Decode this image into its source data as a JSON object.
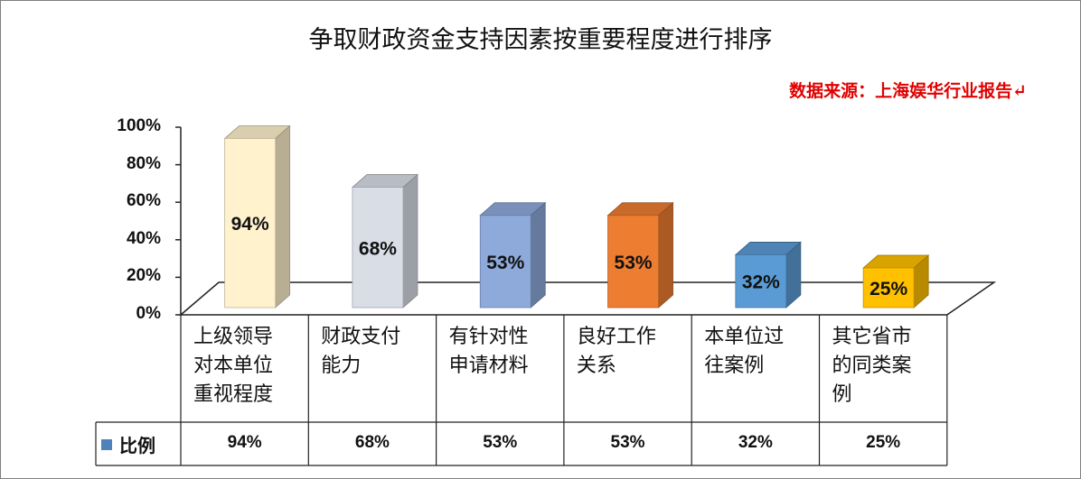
{
  "title": "争取财政资金支持因素按重要程度进行排序",
  "source_note": "数据来源：上海娱华行业报告↵",
  "legend": {
    "label": "比例",
    "color": "#4f81bd"
  },
  "chart_data": {
    "type": "bar",
    "title": "争取财政资金支持因素按重要程度进行排序",
    "categories": [
      "上级领导对本单位重视程度",
      "财政支付能力",
      "有针对性申请材料",
      "良好工作关系",
      "本单位过往案例",
      "其它省市的同类案例"
    ],
    "category_labels": [
      "上级领导\n对本单位\n重视程度",
      "财政支付\n能力",
      "有针对性\n申请材料",
      "良好工作\n关系",
      "本单位过\n往案例",
      "其它省市\n的同类案\n例"
    ],
    "series": [
      {
        "name": "比例",
        "values": [
          94,
          68,
          53,
          53,
          32,
          25
        ]
      }
    ],
    "value_labels": [
      "94%",
      "68%",
      "53%",
      "53%",
      "32%",
      "25%"
    ],
    "bar_colors": [
      "#fff2cc",
      "#d9dde6",
      "#8eaadb",
      "#ed7d31",
      "#5b9bd5",
      "#ffc000"
    ],
    "yticks": [
      "0%",
      "20%",
      "40%",
      "60%",
      "80%",
      "100%"
    ],
    "ylim": [
      0,
      100
    ],
    "data_table": true
  }
}
